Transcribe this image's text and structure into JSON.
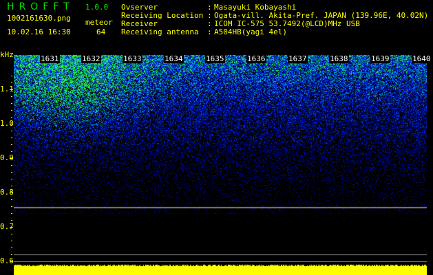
{
  "app": {
    "title": "HROFFT",
    "version": "1.0.0"
  },
  "file": {
    "name": "1002161630.png",
    "datetime": "10.02.16 16:30"
  },
  "meteor": {
    "label": "meteor",
    "count": "64"
  },
  "info": [
    {
      "label": "Ovserver",
      "sep": ":",
      "value": "Masayuki Kobayashi"
    },
    {
      "label": "Receiving Location",
      "sep": ":",
      "value": "Ogata-vill. Akita-Pref. JAPAN (139.96E, 40.02N)"
    },
    {
      "label": "Receiver",
      "sep": ":",
      "value": "ICOM IC-575 53.7492(@LCD)MHz USB"
    },
    {
      "label": "Receiving antenna",
      "sep": ":",
      "value": "A504HB(yagi 4el)"
    }
  ],
  "axis": {
    "unit": "kHz",
    "y_ticks": [
      "1.1",
      "1.0",
      "0.9",
      "0.8",
      "0.7",
      "0.6"
    ],
    "y_range_khz": [
      0.58,
      1.19
    ],
    "time_labels": [
      "1631",
      "1632",
      "1633",
      "1634",
      "1635",
      "1636",
      "1637",
      "1638",
      "1639",
      "1640"
    ]
  },
  "colors": {
    "text": "#ffff00",
    "title": "#00e000",
    "signal_bg": "#0000a0",
    "carrier_line": "#ffffc0"
  },
  "carrier_khz": 0.757
}
